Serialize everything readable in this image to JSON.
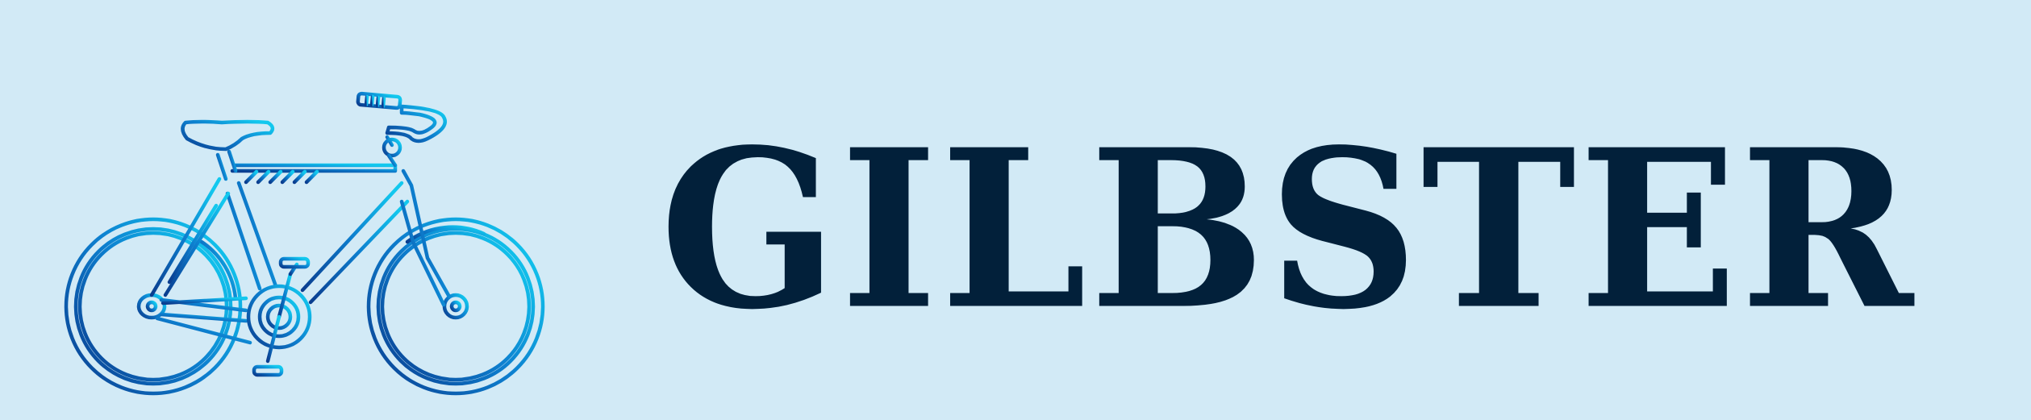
{
  "brand": {
    "name": "GILBSTER",
    "text_color": "#02203a"
  },
  "logo": {
    "icon": "bicycle-icon",
    "gradient_start": "#0a3d8f",
    "gradient_end": "#12c8ee"
  },
  "background_color": "#d2eaf6"
}
